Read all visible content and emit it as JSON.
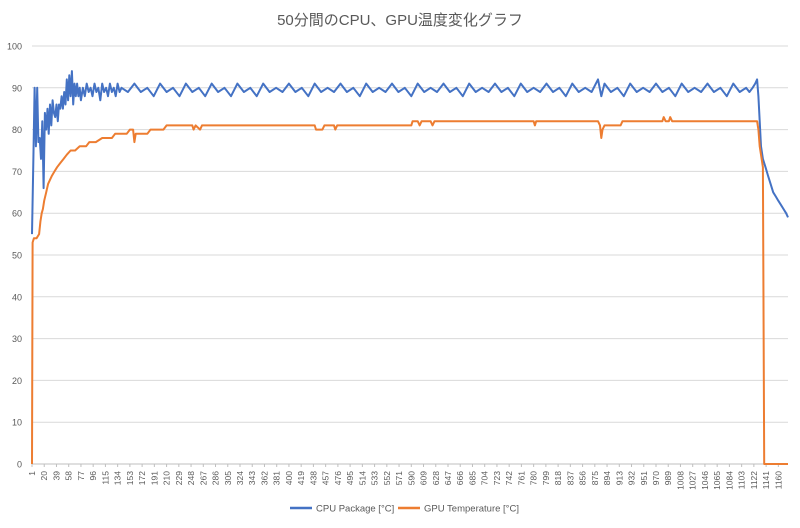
{
  "chart_data": {
    "type": "line",
    "title": "50分間のCPU、GPU温度変化グラフ",
    "xlabel": "",
    "ylabel": "",
    "ylim": [
      0,
      100
    ],
    "yticks": [
      0,
      10,
      20,
      30,
      40,
      50,
      60,
      70,
      80,
      90,
      100
    ],
    "x_range": [
      1,
      1175
    ],
    "x_tick_labels": [
      1,
      20,
      39,
      58,
      77,
      96,
      115,
      134,
      153,
      172,
      191,
      210,
      229,
      248,
      267,
      286,
      305,
      324,
      343,
      362,
      381,
      400,
      419,
      438,
      457,
      476,
      495,
      514,
      533,
      552,
      571,
      590,
      609,
      628,
      647,
      666,
      685,
      704,
      723,
      742,
      761,
      780,
      799,
      818,
      837,
      856,
      875,
      894,
      913,
      932,
      951,
      970,
      989,
      1008,
      1027,
      1046,
      1065,
      1084,
      1103,
      1122,
      1141,
      1160
    ],
    "grid": true,
    "legend_position": "bottom",
    "series": [
      {
        "name": "CPU Package [°C]",
        "color": "#4472C4",
        "points": [
          [
            1,
            55
          ],
          [
            3,
            72
          ],
          [
            5,
            90
          ],
          [
            7,
            76
          ],
          [
            9,
            90
          ],
          [
            11,
            77
          ],
          [
            13,
            78
          ],
          [
            15,
            73
          ],
          [
            17,
            82
          ],
          [
            19,
            66
          ],
          [
            21,
            84
          ],
          [
            23,
            80
          ],
          [
            25,
            85
          ],
          [
            27,
            79
          ],
          [
            29,
            86
          ],
          [
            31,
            81
          ],
          [
            33,
            87
          ],
          [
            35,
            84
          ],
          [
            37,
            83
          ],
          [
            39,
            86
          ],
          [
            41,
            82
          ],
          [
            43,
            86
          ],
          [
            45,
            85
          ],
          [
            47,
            88
          ],
          [
            49,
            85
          ],
          [
            51,
            89
          ],
          [
            53,
            86
          ],
          [
            55,
            92
          ],
          [
            57,
            87
          ],
          [
            59,
            93
          ],
          [
            61,
            88
          ],
          [
            63,
            94
          ],
          [
            65,
            86
          ],
          [
            67,
            91
          ],
          [
            69,
            88
          ],
          [
            71,
            91
          ],
          [
            73,
            88
          ],
          [
            75,
            90
          ],
          [
            77,
            87
          ],
          [
            80,
            90
          ],
          [
            83,
            88
          ],
          [
            86,
            91
          ],
          [
            89,
            89
          ],
          [
            92,
            90
          ],
          [
            95,
            88
          ],
          [
            98,
            91
          ],
          [
            101,
            89
          ],
          [
            104,
            90
          ],
          [
            107,
            87
          ],
          [
            110,
            91
          ],
          [
            113,
            89
          ],
          [
            116,
            90
          ],
          [
            119,
            88
          ],
          [
            122,
            91
          ],
          [
            125,
            89
          ],
          [
            128,
            90
          ],
          [
            131,
            88
          ],
          [
            134,
            91
          ],
          [
            137,
            89
          ],
          [
            140,
            90
          ],
          [
            150,
            89
          ],
          [
            160,
            91
          ],
          [
            170,
            89
          ],
          [
            180,
            90
          ],
          [
            190,
            88
          ],
          [
            200,
            91
          ],
          [
            210,
            89
          ],
          [
            220,
            90
          ],
          [
            230,
            88
          ],
          [
            240,
            91
          ],
          [
            250,
            89
          ],
          [
            260,
            90
          ],
          [
            270,
            88
          ],
          [
            280,
            91
          ],
          [
            290,
            89
          ],
          [
            300,
            90
          ],
          [
            310,
            88
          ],
          [
            320,
            91
          ],
          [
            330,
            89
          ],
          [
            340,
            90
          ],
          [
            350,
            88
          ],
          [
            360,
            91
          ],
          [
            370,
            89
          ],
          [
            380,
            90
          ],
          [
            390,
            89
          ],
          [
            400,
            91
          ],
          [
            410,
            89
          ],
          [
            420,
            90
          ],
          [
            430,
            88
          ],
          [
            440,
            91
          ],
          [
            450,
            89
          ],
          [
            460,
            90
          ],
          [
            470,
            89
          ],
          [
            480,
            91
          ],
          [
            490,
            89
          ],
          [
            500,
            90
          ],
          [
            510,
            88
          ],
          [
            520,
            91
          ],
          [
            530,
            89
          ],
          [
            540,
            90
          ],
          [
            550,
            89
          ],
          [
            560,
            91
          ],
          [
            570,
            89
          ],
          [
            580,
            90
          ],
          [
            590,
            88
          ],
          [
            600,
            91
          ],
          [
            610,
            89
          ],
          [
            620,
            90
          ],
          [
            630,
            89
          ],
          [
            640,
            91
          ],
          [
            650,
            89
          ],
          [
            660,
            90
          ],
          [
            670,
            88
          ],
          [
            680,
            91
          ],
          [
            690,
            89
          ],
          [
            700,
            90
          ],
          [
            710,
            89
          ],
          [
            720,
            91
          ],
          [
            730,
            89
          ],
          [
            740,
            90
          ],
          [
            750,
            88
          ],
          [
            760,
            91
          ],
          [
            770,
            89
          ],
          [
            780,
            90
          ],
          [
            790,
            89
          ],
          [
            800,
            91
          ],
          [
            810,
            89
          ],
          [
            820,
            90
          ],
          [
            830,
            88
          ],
          [
            840,
            91
          ],
          [
            850,
            89
          ],
          [
            860,
            90
          ],
          [
            870,
            89
          ],
          [
            880,
            92
          ],
          [
            885,
            88
          ],
          [
            890,
            91
          ],
          [
            900,
            89
          ],
          [
            910,
            90
          ],
          [
            920,
            88
          ],
          [
            930,
            91
          ],
          [
            940,
            89
          ],
          [
            950,
            90
          ],
          [
            960,
            89
          ],
          [
            970,
            91
          ],
          [
            980,
            89
          ],
          [
            990,
            90
          ],
          [
            1000,
            88
          ],
          [
            1010,
            91
          ],
          [
            1020,
            89
          ],
          [
            1030,
            90
          ],
          [
            1040,
            89
          ],
          [
            1050,
            91
          ],
          [
            1060,
            89
          ],
          [
            1070,
            90
          ],
          [
            1080,
            88
          ],
          [
            1090,
            91
          ],
          [
            1100,
            89
          ],
          [
            1110,
            90
          ],
          [
            1115,
            89
          ],
          [
            1120,
            90
          ],
          [
            1124,
            91
          ],
          [
            1127,
            92
          ],
          [
            1129,
            88
          ],
          [
            1131,
            82
          ],
          [
            1133,
            76
          ],
          [
            1136,
            73
          ],
          [
            1140,
            71
          ],
          [
            1144,
            69
          ],
          [
            1148,
            67
          ],
          [
            1152,
            65
          ],
          [
            1156,
            64
          ],
          [
            1160,
            63
          ],
          [
            1164,
            62
          ],
          [
            1168,
            61
          ],
          [
            1172,
            60
          ],
          [
            1175,
            59
          ]
        ]
      },
      {
        "name": "GPU Temperature [°C]",
        "color": "#ED7D31",
        "points": [
          [
            1,
            0
          ],
          [
            2,
            53
          ],
          [
            4,
            54
          ],
          [
            8,
            54
          ],
          [
            12,
            55
          ],
          [
            14,
            58
          ],
          [
            16,
            60
          ],
          [
            18,
            61
          ],
          [
            20,
            63
          ],
          [
            23,
            65
          ],
          [
            26,
            67
          ],
          [
            29,
            68
          ],
          [
            32,
            69
          ],
          [
            36,
            70
          ],
          [
            40,
            71
          ],
          [
            45,
            72
          ],
          [
            50,
            73
          ],
          [
            55,
            74
          ],
          [
            61,
            75
          ],
          [
            68,
            75
          ],
          [
            75,
            76
          ],
          [
            85,
            76
          ],
          [
            90,
            77
          ],
          [
            100,
            77
          ],
          [
            110,
            78
          ],
          [
            125,
            78
          ],
          [
            130,
            79
          ],
          [
            148,
            79
          ],
          [
            153,
            80
          ],
          [
            158,
            80
          ],
          [
            160,
            77
          ],
          [
            162,
            79
          ],
          [
            180,
            79
          ],
          [
            185,
            80
          ],
          [
            205,
            80
          ],
          [
            210,
            81
          ],
          [
            250,
            81
          ],
          [
            252,
            80
          ],
          [
            255,
            81
          ],
          [
            262,
            80
          ],
          [
            265,
            81
          ],
          [
            440,
            81
          ],
          [
            442,
            80
          ],
          [
            452,
            80
          ],
          [
            455,
            81
          ],
          [
            470,
            81
          ],
          [
            472,
            80
          ],
          [
            475,
            81
          ],
          [
            590,
            81
          ],
          [
            592,
            82
          ],
          [
            600,
            82
          ],
          [
            603,
            81
          ],
          [
            606,
            82
          ],
          [
            620,
            82
          ],
          [
            623,
            81
          ],
          [
            626,
            82
          ],
          [
            780,
            82
          ],
          [
            782,
            81
          ],
          [
            784,
            82
          ],
          [
            880,
            82
          ],
          [
            883,
            81
          ],
          [
            885,
            78
          ],
          [
            887,
            80
          ],
          [
            890,
            81
          ],
          [
            900,
            81
          ],
          [
            915,
            81
          ],
          [
            918,
            82
          ],
          [
            980,
            82
          ],
          [
            982,
            83
          ],
          [
            985,
            82
          ],
          [
            990,
            82
          ],
          [
            992,
            83
          ],
          [
            995,
            82
          ],
          [
            1127,
            82
          ],
          [
            1129,
            80
          ],
          [
            1131,
            76
          ],
          [
            1133,
            74
          ],
          [
            1136,
            71
          ],
          [
            1138,
            0
          ],
          [
            1150,
            0
          ],
          [
            1175,
            0
          ]
        ]
      }
    ]
  }
}
